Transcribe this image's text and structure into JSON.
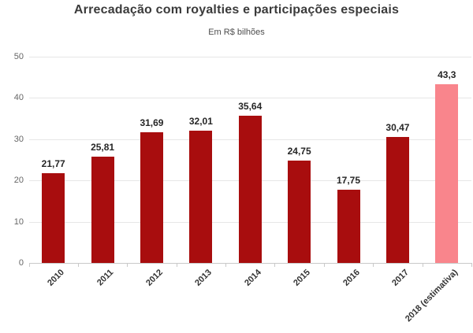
{
  "chart_data": {
    "type": "bar",
    "title": "Arrecadação com royalties e participações especiais",
    "subtitle": "Em R$ bilhões",
    "categories": [
      "2010",
      "2011",
      "2012",
      "2013",
      "2014",
      "2015",
      "2016",
      "2017",
      "2018 (estimativa)"
    ],
    "values": [
      21.77,
      25.81,
      31.69,
      32.01,
      35.64,
      24.75,
      17.75,
      30.47,
      43.3
    ],
    "value_labels": [
      "21,77",
      "25,81",
      "31,69",
      "32,01",
      "35,64",
      "24,75",
      "17,75",
      "30,47",
      "43,3"
    ],
    "ylim": [
      0,
      50
    ],
    "yticks": [
      0,
      10,
      20,
      30,
      40,
      50
    ],
    "xlabel": "",
    "ylabel": "",
    "grid": true,
    "legend": "none",
    "colors": {
      "bar": "#a80d0e",
      "estimate_bar": "#f9858c",
      "value_label_text": "#262626",
      "axis_text": "#666666",
      "category_text": "#333333",
      "grid_line": "#e6e6e6",
      "axis_line": "#c9c9c9",
      "title_text": "#3b3b3b",
      "background": "#ffffff"
    }
  }
}
